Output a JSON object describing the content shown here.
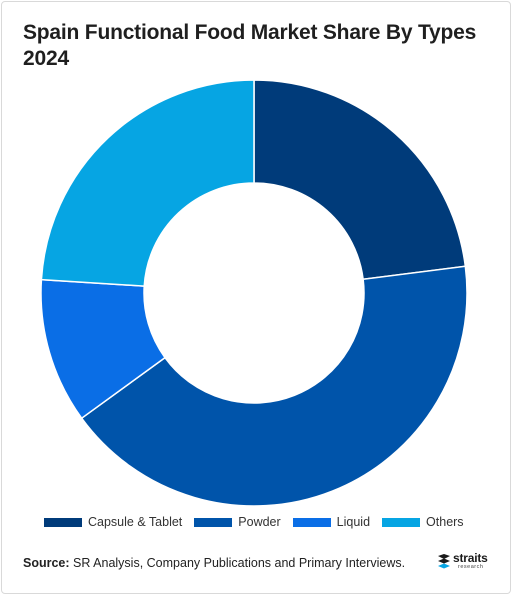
{
  "title": "Spain Functional Food Market Share By Types 2024",
  "chart_data": {
    "type": "pie",
    "donut": true,
    "categories": [
      "Capsule & Tablet",
      "Powder",
      "Liquid",
      "Others"
    ],
    "values": [
      23,
      42,
      11,
      24
    ],
    "colors": [
      "#003b7a",
      "#0054aa",
      "#0a6ee6",
      "#06a5e3"
    ],
    "legend_position": "bottom"
  },
  "legend": {
    "items": [
      {
        "label": "Capsule & Tablet",
        "color": "#003b7a"
      },
      {
        "label": "Powder",
        "color": "#0054aa"
      },
      {
        "label": "Liquid",
        "color": "#0a6ee6"
      },
      {
        "label": "Others",
        "color": "#06a5e3"
      }
    ]
  },
  "source": {
    "label": "Source:",
    "text": " SR Analysis, Company Publications and Primary Interviews."
  },
  "logo": {
    "word": "straits",
    "sub": "research"
  }
}
